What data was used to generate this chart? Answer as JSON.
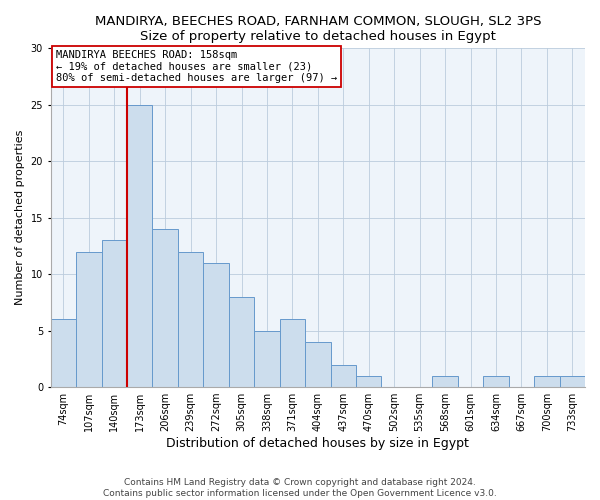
{
  "title": "MANDIRYA, BEECHES ROAD, FARNHAM COMMON, SLOUGH, SL2 3PS",
  "subtitle": "Size of property relative to detached houses in Egypt",
  "xlabel": "Distribution of detached houses by size in Egypt",
  "ylabel": "Number of detached properties",
  "bin_labels": [
    "74sqm",
    "107sqm",
    "140sqm",
    "173sqm",
    "206sqm",
    "239sqm",
    "272sqm",
    "305sqm",
    "338sqm",
    "371sqm",
    "404sqm",
    "437sqm",
    "470sqm",
    "502sqm",
    "535sqm",
    "568sqm",
    "601sqm",
    "634sqm",
    "667sqm",
    "700sqm",
    "733sqm"
  ],
  "bar_values": [
    6,
    12,
    13,
    25,
    14,
    12,
    11,
    8,
    5,
    6,
    4,
    2,
    1,
    0,
    0,
    1,
    0,
    1,
    0,
    1,
    1
  ],
  "bar_color": "#ccdded",
  "bar_edge_color": "#6699cc",
  "vline_color": "#cc0000",
  "vline_pos": 2.5,
  "annotation_text": "MANDIRYA BEECHES ROAD: 158sqm\n← 19% of detached houses are smaller (23)\n80% of semi-detached houses are larger (97) →",
  "annotation_box_color": "#ffffff",
  "annotation_box_edge": "#cc0000",
  "ylim": [
    0,
    30
  ],
  "yticks": [
    0,
    5,
    10,
    15,
    20,
    25,
    30
  ],
  "footer_text": "Contains HM Land Registry data © Crown copyright and database right 2024.\nContains public sector information licensed under the Open Government Licence v3.0.",
  "title_fontsize": 9.5,
  "xlabel_fontsize": 9,
  "ylabel_fontsize": 8,
  "tick_fontsize": 7,
  "annotation_fontsize": 7.5,
  "footer_fontsize": 6.5
}
